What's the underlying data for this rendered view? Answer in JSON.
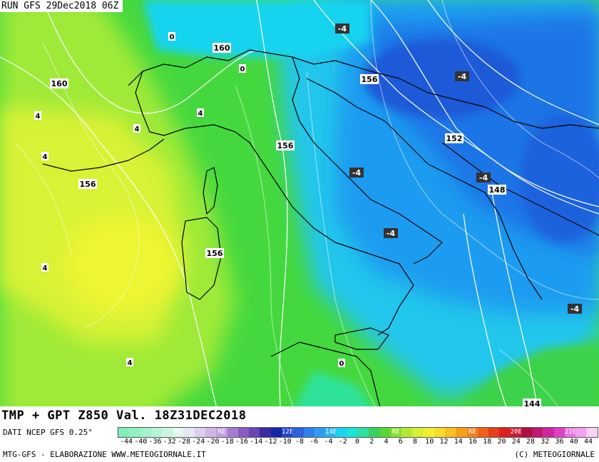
{
  "header": {
    "run_title": "RUN GFS 29Dec2018 06Z"
  },
  "footer": {
    "field_title": "TMP + GPT Z850 Val. 18Z31DEC2018",
    "data_source": "DATI NCEP GFS 0.25°",
    "credit_left": "MTG-GFS - ELABORAZIONE WWW.METEOGIORNALE.IT",
    "credit_right": "(C) METEOGIORNALE"
  },
  "map": {
    "height_labels": [
      "160",
      "160",
      "156",
      "156",
      "156",
      "156",
      "152",
      "148",
      "144"
    ],
    "temp_labels_boxed": [
      "-4",
      "-4",
      "-4",
      "-4",
      "-4",
      "-4"
    ],
    "temp_labels_small": [
      "0",
      "0",
      "4",
      "4",
      "4",
      "4",
      "4",
      "4",
      "0"
    ]
  },
  "colorbar": {
    "tick_labels": [
      "-44",
      "-40",
      "-36",
      "-32",
      "-28",
      "-24",
      "-20",
      "-18",
      "-16",
      "-14",
      "-12",
      "-10",
      "-8",
      "-6",
      "-4",
      "-2",
      "0",
      "2",
      "4",
      "6",
      "8",
      "10",
      "12",
      "14",
      "16",
      "18",
      "20",
      "24",
      "28",
      "32",
      "36",
      "40",
      "44"
    ],
    "swatches": [
      {
        "c": "#7fefb3",
        "t": ""
      },
      {
        "c": "#8ff0c0",
        "t": ""
      },
      {
        "c": "#a2f2cc",
        "t": ""
      },
      {
        "c": "#b6f4d8",
        "t": ""
      },
      {
        "c": "#c9f6e3",
        "t": ""
      },
      {
        "c": "#ddf7ee",
        "t": "RE"
      },
      {
        "c": "#e8e8f5",
        "t": ""
      },
      {
        "c": "#ddd0ef",
        "t": ""
      },
      {
        "c": "#cfb8e8",
        "t": ""
      },
      {
        "c": "#c1a0e1",
        "t": "RE"
      },
      {
        "c": "#a77bd2",
        "t": ""
      },
      {
        "c": "#8a5cc2",
        "t": ""
      },
      {
        "c": "#6a45b4",
        "t": ""
      },
      {
        "c": "#3a2aa4",
        "t": ""
      },
      {
        "c": "#1626a8",
        "t": ""
      },
      {
        "c": "#1e46c8",
        "t": "12E"
      },
      {
        "c": "#2962dc",
        "t": ""
      },
      {
        "c": "#2e80ea",
        "t": ""
      },
      {
        "c": "#2f9cf2",
        "t": ""
      },
      {
        "c": "#28b8f6",
        "t": "14E"
      },
      {
        "c": "#1dd3f0",
        "t": ""
      },
      {
        "c": "#18e6d8",
        "t": ""
      },
      {
        "c": "#2ee0a0",
        "t": ""
      },
      {
        "c": "#38d060",
        "t": ""
      },
      {
        "c": "#5ad838",
        "t": ""
      },
      {
        "c": "#88e030",
        "t": "RE"
      },
      {
        "c": "#b0ea30",
        "t": ""
      },
      {
        "c": "#d5f030",
        "t": ""
      },
      {
        "c": "#f0f030",
        "t": ""
      },
      {
        "c": "#f8dc28",
        "t": ""
      },
      {
        "c": "#f8c020",
        "t": ""
      },
      {
        "c": "#f8a018",
        "t": ""
      },
      {
        "c": "#f48018",
        "t": "RE"
      },
      {
        "c": "#ee6018",
        "t": ""
      },
      {
        "c": "#e64018",
        "t": ""
      },
      {
        "c": "#dc2020",
        "t": ""
      },
      {
        "c": "#c81830",
        "t": "20E"
      },
      {
        "c": "#b01040",
        "t": ""
      },
      {
        "c": "#c01870",
        "t": ""
      },
      {
        "c": "#d024a0",
        "t": ""
      },
      {
        "c": "#e040c8",
        "t": ""
      },
      {
        "c": "#ec70e0",
        "t": "22E"
      },
      {
        "c": "#f4a0ee",
        "t": ""
      },
      {
        "c": "#fbd0f6",
        "t": ""
      }
    ]
  },
  "colors": {
    "warm": "#c8f03a",
    "mid": "#3dd63a",
    "cold": "#1aa6f0",
    "coldest": "#1f5fe0"
  }
}
